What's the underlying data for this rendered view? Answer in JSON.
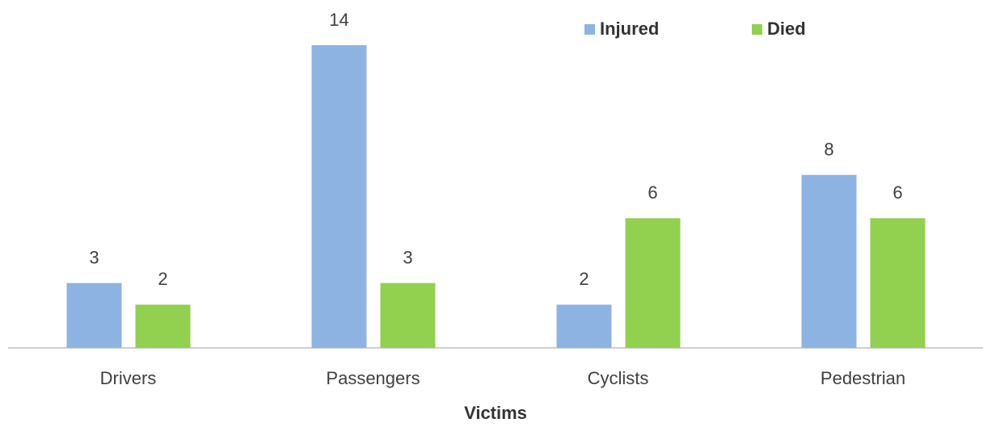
{
  "chart_data": {
    "type": "bar",
    "x_label": "Victims",
    "categories": [
      "Drivers",
      "Passengers",
      "Cyclists",
      "Pedestrian"
    ],
    "series": [
      {
        "name": "Injured",
        "color": "#8db3e2",
        "values": [
          3,
          14,
          2,
          8
        ]
      },
      {
        "name": "Died",
        "color": "#92d050",
        "values": [
          2,
          3,
          6,
          6
        ]
      }
    ],
    "legend": "top-right"
  }
}
